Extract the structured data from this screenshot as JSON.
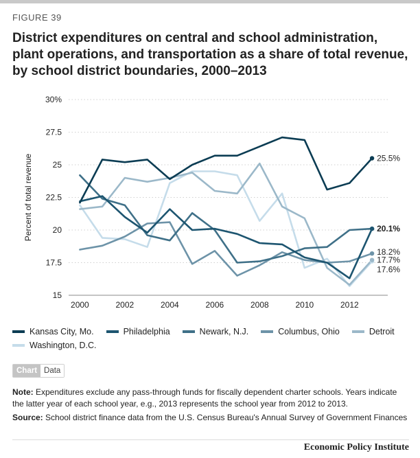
{
  "figure_label": "FIGURE 39",
  "title": "District expenditures on central and school administration, plant operations, and transportation as a share of total revenue, by school district boundaries, 2000–2013",
  "tabs": {
    "chart": "Chart",
    "data": "Data"
  },
  "note": {
    "label": "Note:",
    "text": " Expenditures exclude any pass-through funds for fiscally dependent charter schools. Years indicate the latter year of each school year, e.g., 2013 represents the school year from 2012 to 2013."
  },
  "source": {
    "label": "Source:",
    "text": " School district finance data from the U.S. Census Bureau's Annual Survey of Government Finances"
  },
  "brand": "Economic Policy Institute",
  "chart_data": {
    "type": "line",
    "ylabel": "Percent of total revenue",
    "ylim": [
      15,
      30
    ],
    "yticks": [
      15,
      17.5,
      20,
      22.5,
      25,
      27.5,
      30
    ],
    "ytick_labels": [
      "15",
      "17.5",
      "20",
      "22.5",
      "25",
      "27.5",
      "30%"
    ],
    "xlim": [
      1999.5,
      2013.7
    ],
    "xticks": [
      2000,
      2002,
      2004,
      2006,
      2008,
      2010,
      2012
    ],
    "xtick_labels": [
      "2000",
      "2002",
      "2004",
      "2006",
      "2008",
      "2010",
      "2012"
    ],
    "grid": true,
    "legend_position": "bottom",
    "x": [
      2000,
      2001,
      2002,
      2003,
      2004,
      2005,
      2006,
      2007,
      2008,
      2009,
      2010,
      2011,
      2012,
      2013
    ],
    "series": [
      {
        "name": "Kansas City, Mo.",
        "color": "#0b3c53",
        "end_label": "25.5%",
        "bold": false,
        "values": [
          22.1,
          25.4,
          25.2,
          25.4,
          23.9,
          25.0,
          25.7,
          25.7,
          26.4,
          27.1,
          26.9,
          23.1,
          23.6,
          25.5
        ]
      },
      {
        "name": "Philadelphia",
        "color": "#1d5570",
        "end_label": "20.1%",
        "bold": true,
        "values": [
          22.2,
          22.6,
          21.0,
          19.8,
          21.6,
          20.0,
          20.1,
          19.7,
          19.0,
          18.9,
          17.9,
          17.5,
          16.3,
          20.1
        ]
      },
      {
        "name": "Newark, N.J.",
        "color": "#3f7088",
        "end_label": "",
        "bold": false,
        "values": [
          24.2,
          22.4,
          21.9,
          19.6,
          19.2,
          21.3,
          20.0,
          17.5,
          17.6,
          18.0,
          18.6,
          18.7,
          20.0,
          20.1
        ]
      },
      {
        "name": "Columbus, Ohio",
        "color": "#6d93a8",
        "end_label": "18.2%",
        "bold": false,
        "values": [
          18.5,
          18.8,
          19.5,
          20.5,
          20.6,
          17.4,
          18.4,
          16.5,
          17.3,
          18.3,
          17.7,
          17.5,
          17.6,
          18.2
        ]
      },
      {
        "name": "Detroit",
        "color": "#9bb8c9",
        "end_label": "17.7%",
        "bold": false,
        "values": [
          21.6,
          21.8,
          24.0,
          23.7,
          24.0,
          24.4,
          23.0,
          22.8,
          25.1,
          21.8,
          20.9,
          17.1,
          15.8,
          17.7
        ]
      },
      {
        "name": "Washington, D.C.",
        "color": "#c5dcea",
        "end_label": "17.6%",
        "bold": false,
        "values": [
          21.9,
          19.4,
          19.3,
          18.7,
          23.6,
          24.5,
          24.5,
          24.2,
          20.7,
          22.8,
          17.1,
          17.8,
          15.7,
          17.6
        ]
      }
    ]
  }
}
